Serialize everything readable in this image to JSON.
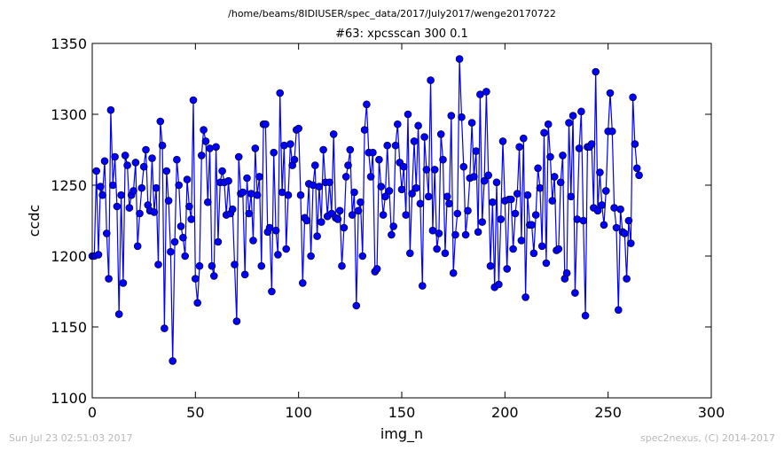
{
  "header": {
    "path": "/home/beams/8IDIUSER/spec_data/2017/July2017/wenge20170722"
  },
  "footer": {
    "timestamp": "Sun Jul 23 02:51:03 2017",
    "credit": "spec2nexus, (C) 2014-2017"
  },
  "colors": {
    "series": "#0000ff",
    "footer_text": "#b8b8b8"
  },
  "chart_data": {
    "type": "line",
    "title": "#63: xpcsscan 300 0.1",
    "xlabel": "img_n",
    "ylabel": "ccdc",
    "xlim": [
      0,
      300
    ],
    "ylim": [
      1100,
      1350
    ],
    "xticks": [
      "0",
      "50",
      "100",
      "150",
      "200",
      "250",
      "300"
    ],
    "yticks": [
      "1100",
      "1150",
      "1200",
      "1250",
      "1300",
      "1350"
    ],
    "grid": false,
    "marker": "circle",
    "series": [
      {
        "x_start": 0,
        "x_step": 1,
        "values": [
          1200,
          1200,
          1260,
          1201,
          1249,
          1243,
          1267,
          1216,
          1184,
          1303,
          1250,
          1270,
          1235,
          1159,
          1243,
          1181,
          1271,
          1264,
          1234,
          1243,
          1246,
          1266,
          1207,
          1230,
          1248,
          1263,
          1275,
          1236,
          1232,
          1269,
          1231,
          1248,
          1194,
          1295,
          1278,
          1149,
          1260,
          1239,
          1203,
          1126,
          1210,
          1268,
          1250,
          1221,
          1213,
          1200,
          1254,
          1235,
          1226,
          1310,
          1184,
          1167,
          1193,
          1271,
          1289,
          1281,
          1238,
          1276,
          1193,
          1186,
          1277,
          1210,
          1252,
          1260,
          1252,
          1229,
          1253,
          1230,
          1233,
          1194,
          1154,
          1270,
          1244,
          1245,
          1187,
          1255,
          1230,
          1244,
          1211,
          1276,
          1243,
          1256,
          1193,
          1293,
          1293,
          1217,
          1220,
          1175,
          1273,
          1218,
          1201,
          1315,
          1245,
          1278,
          1205,
          1243,
          1279,
          1264,
          1268,
          1289,
          1290,
          1243,
          1181,
          1227,
          1225,
          1251,
          1200,
          1250,
          1264,
          1214,
          1249,
          1224,
          1275,
          1252,
          1228,
          1252,
          1230,
          1286,
          1227,
          1226,
          1232,
          1193,
          1220,
          1256,
          1264,
          1275,
          1229,
          1245,
          1165,
          1232,
          1238,
          1200,
          1289,
          1307,
          1273,
          1256,
          1273,
          1189,
          1191,
          1268,
          1249,
          1229,
          1242,
          1278,
          1246,
          1215,
          1221,
          1278,
          1293,
          1266,
          1247,
          1263,
          1229,
          1300,
          1202,
          1244,
          1281,
          1248,
          1292,
          1237,
          1179,
          1284,
          1261,
          1242,
          1324,
          1218,
          1261,
          1205,
          1216,
          1286,
          1268,
          1202,
          1242,
          1237,
          1299,
          1188,
          1215,
          1230,
          1339,
          1298,
          1263,
          1215,
          1232,
          1255,
          1294,
          1256,
          1274,
          1217,
          1314,
          1224,
          1253,
          1316,
          1257,
          1193,
          1238,
          1178,
          1252,
          1180,
          1226,
          1281,
          1239,
          1191,
          1240,
          1240,
          1205,
          1230,
          1244,
          1277,
          1211,
          1283,
          1171,
          1243,
          1222,
          1222,
          1202,
          1229,
          1262,
          1248,
          1207,
          1287,
          1195,
          1293,
          1270,
          1239,
          1256,
          1204,
          1205,
          1252,
          1271,
          1184,
          1188,
          1294,
          1242,
          1299,
          1174,
          1226,
          1276,
          1302,
          1225,
          1158,
          1277,
          1277,
          1279,
          1234,
          1330,
          1232,
          1259,
          1236,
          1222,
          1246,
          1288,
          1315,
          1288,
          1234,
          1220,
          1162,
          1233,
          1217,
          1216,
          1184,
          1225,
          1209,
          1312,
          1279,
          1262,
          1257
        ]
      }
    ]
  }
}
